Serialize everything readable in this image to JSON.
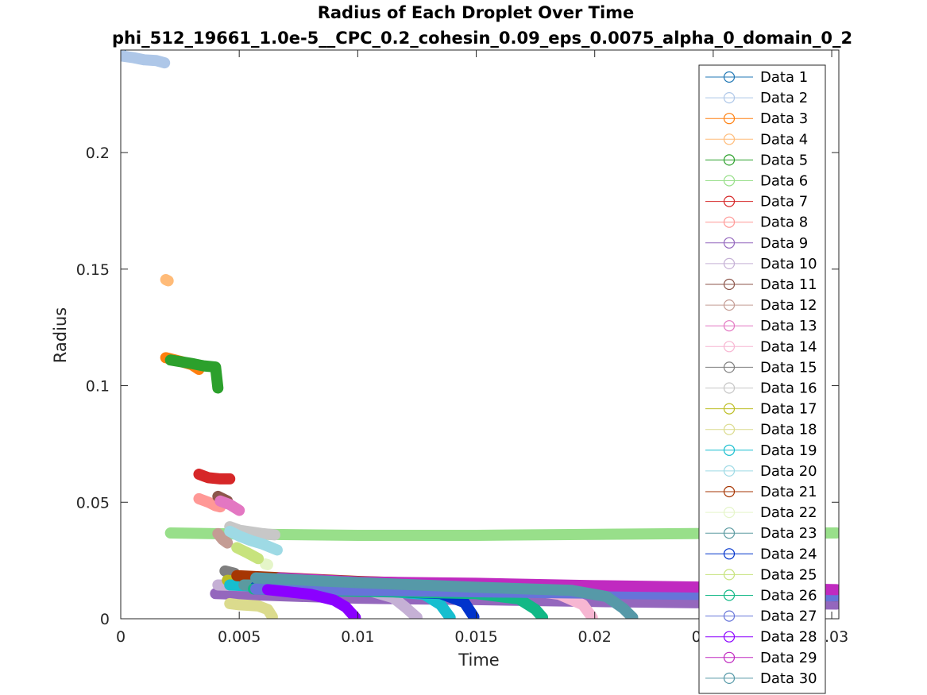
{
  "chart_data": {
    "type": "scatter",
    "title": "Radius of Each Droplet Over Time",
    "subtitle": "phi_512_19661_1.0e-5__CPC_0.2_cohesin_0.09_eps_0.0075_alpha_0_domain_0_2",
    "xlabel": "Time",
    "ylabel": "Radius",
    "xlim": [
      0,
      0.0303
    ],
    "ylim": [
      0,
      0.244
    ],
    "xticks": [
      0,
      0.005,
      0.01,
      0.015,
      0.02,
      0.025,
      0.03
    ],
    "xtick_labels": [
      "0",
      "0.005",
      "0.01",
      "0.015",
      "0.02",
      "0.025",
      "0.03"
    ],
    "yticks": [
      0,
      0.05,
      0.1,
      0.15,
      0.2
    ],
    "ytick_labels": [
      "0",
      "0.05",
      "0.1",
      "0.15",
      "0.2"
    ],
    "grid": false,
    "legend_position": "top-right",
    "series": [
      {
        "name": "Data 1",
        "color": "#1f77b4",
        "points": [
          [
            0.0,
            0.243
          ]
        ]
      },
      {
        "name": "Data 2",
        "color": "#aec7e8",
        "points": [
          [
            0.0,
            0.2415
          ],
          [
            0.0005,
            0.2408
          ],
          [
            0.001,
            0.2398
          ],
          [
            0.0015,
            0.2395
          ],
          [
            0.00185,
            0.2385
          ]
        ]
      },
      {
        "name": "Data 3",
        "color": "#ff7f0e",
        "points": [
          [
            0.0019,
            0.112
          ],
          [
            0.0025,
            0.1105
          ],
          [
            0.003,
            0.109
          ],
          [
            0.0033,
            0.107
          ]
        ]
      },
      {
        "name": "Data 4",
        "color": "#ffbb78",
        "points": [
          [
            0.0019,
            0.1455
          ],
          [
            0.002,
            0.145
          ]
        ]
      },
      {
        "name": "Data 5",
        "color": "#2ca02c",
        "points": [
          [
            0.0021,
            0.111
          ],
          [
            0.003,
            0.1095
          ],
          [
            0.0035,
            0.1085
          ],
          [
            0.004,
            0.108
          ],
          [
            0.0041,
            0.099
          ]
        ]
      },
      {
        "name": "Data 6",
        "color": "#98df8a",
        "points": [
          [
            0.0021,
            0.0368
          ],
          [
            0.006,
            0.0362
          ],
          [
            0.01,
            0.0358
          ],
          [
            0.015,
            0.0358
          ],
          [
            0.02,
            0.0362
          ],
          [
            0.025,
            0.0366
          ],
          [
            0.0302,
            0.0368
          ]
        ]
      },
      {
        "name": "Data 7",
        "color": "#d62728",
        "points": [
          [
            0.0033,
            0.062
          ],
          [
            0.0037,
            0.0605
          ],
          [
            0.0042,
            0.06
          ],
          [
            0.0046,
            0.06
          ]
        ]
      },
      {
        "name": "Data 8",
        "color": "#ff9896",
        "points": [
          [
            0.0033,
            0.0515
          ],
          [
            0.0037,
            0.05
          ],
          [
            0.004,
            0.0485
          ],
          [
            0.0042,
            0.048
          ]
        ]
      },
      {
        "name": "Data 9",
        "color": "#9467bd",
        "points": [
          [
            0.004,
            0.0108
          ],
          [
            0.01,
            0.0088
          ],
          [
            0.015,
            0.0082
          ],
          [
            0.02,
            0.0074
          ],
          [
            0.025,
            0.0068
          ],
          [
            0.0302,
            0.0063
          ]
        ]
      },
      {
        "name": "Data 10",
        "color": "#c5b0d5",
        "points": [
          [
            0.0041,
            0.0145
          ],
          [
            0.008,
            0.0135
          ],
          [
            0.0105,
            0.012
          ],
          [
            0.0115,
            0.009
          ],
          [
            0.012,
            0.005
          ],
          [
            0.0125,
            0.0005
          ]
        ]
      },
      {
        "name": "Data 11",
        "color": "#8c564b",
        "points": [
          [
            0.0041,
            0.0525
          ],
          [
            0.0045,
            0.0505
          ]
        ]
      },
      {
        "name": "Data 12",
        "color": "#c49c94",
        "points": [
          [
            0.0041,
            0.0365
          ],
          [
            0.0043,
            0.034
          ],
          [
            0.0045,
            0.0325
          ]
        ]
      },
      {
        "name": "Data 13",
        "color": "#e377c2",
        "points": [
          [
            0.0042,
            0.0505
          ],
          [
            0.0046,
            0.049
          ],
          [
            0.005,
            0.0465
          ]
        ]
      },
      {
        "name": "Data 14",
        "color": "#f7b6d2",
        "points": [
          [
            0.0055,
            0.0145
          ],
          [
            0.012,
            0.0135
          ],
          [
            0.017,
            0.0125
          ],
          [
            0.0185,
            0.0105
          ],
          [
            0.0195,
            0.006
          ],
          [
            0.0199,
            0.0005
          ]
        ]
      },
      {
        "name": "Data 15",
        "color": "#7f7f7f",
        "points": [
          [
            0.0044,
            0.0205
          ],
          [
            0.0048,
            0.0195
          ]
        ]
      },
      {
        "name": "Data 16",
        "color": "#c7c7c7",
        "points": [
          [
            0.0046,
            0.0395
          ],
          [
            0.005,
            0.038
          ],
          [
            0.006,
            0.0365
          ],
          [
            0.0065,
            0.036
          ]
        ]
      },
      {
        "name": "Data 17",
        "color": "#bcbd22",
        "points": [
          [
            0.0045,
            0.0165
          ],
          [
            0.0048,
            0.016
          ]
        ]
      },
      {
        "name": "Data 18",
        "color": "#dbdb8d",
        "points": [
          [
            0.0046,
            0.0065
          ],
          [
            0.005,
            0.006
          ],
          [
            0.0058,
            0.0055
          ],
          [
            0.0062,
            0.004
          ],
          [
            0.0064,
            0.0008
          ]
        ]
      },
      {
        "name": "Data 19",
        "color": "#17becf",
        "points": [
          [
            0.0046,
            0.0145
          ],
          [
            0.008,
            0.013
          ],
          [
            0.011,
            0.012
          ],
          [
            0.0128,
            0.0105
          ],
          [
            0.0135,
            0.006
          ],
          [
            0.0139,
            0.0005
          ]
        ]
      },
      {
        "name": "Data 20",
        "color": "#9edae5",
        "points": [
          [
            0.0046,
            0.0375
          ],
          [
            0.005,
            0.0355
          ],
          [
            0.0055,
            0.0335
          ],
          [
            0.006,
            0.032
          ],
          [
            0.0066,
            0.0295
          ]
        ]
      },
      {
        "name": "Data 21",
        "color": "#a63603",
        "points": [
          [
            0.0049,
            0.0185
          ],
          [
            0.01,
            0.016
          ],
          [
            0.015,
            0.0145
          ],
          [
            0.02,
            0.0128
          ],
          [
            0.025,
            0.0115
          ],
          [
            0.0302,
            0.0098
          ]
        ]
      },
      {
        "name": "Data 22",
        "color": "#e5f5c9",
        "points": [
          [
            0.0061,
            0.0235
          ],
          [
            0.0062,
            0.0232
          ]
        ]
      },
      {
        "name": "Data 23",
        "color": "#5b9aa0",
        "points": [
          [
            0.0052,
            0.0145
          ],
          [
            0.01,
            0.0138
          ],
          [
            0.015,
            0.0128
          ],
          [
            0.02,
            0.0118
          ],
          [
            0.025,
            0.011
          ],
          [
            0.0302,
            0.0103
          ]
        ]
      },
      {
        "name": "Data 24",
        "color": "#0033cc",
        "points": [
          [
            0.0057,
            0.0138
          ],
          [
            0.01,
            0.0122
          ],
          [
            0.0135,
            0.0108
          ],
          [
            0.0145,
            0.007
          ],
          [
            0.0149,
            0.0008
          ]
        ]
      },
      {
        "name": "Data 25",
        "color": "#c7e37d",
        "points": [
          [
            0.0049,
            0.0305
          ],
          [
            0.0053,
            0.0285
          ],
          [
            0.0058,
            0.0258
          ]
        ]
      },
      {
        "name": "Data 26",
        "color": "#12b886",
        "points": [
          [
            0.0056,
            0.0128
          ],
          [
            0.01,
            0.0118
          ],
          [
            0.015,
            0.0108
          ],
          [
            0.0168,
            0.0085
          ],
          [
            0.0175,
            0.004
          ],
          [
            0.0178,
            0.0005
          ]
        ]
      },
      {
        "name": "Data 27",
        "color": "#6674d9",
        "points": [
          [
            0.0057,
            0.0128
          ],
          [
            0.012,
            0.012
          ],
          [
            0.018,
            0.0112
          ],
          [
            0.024,
            0.0105
          ],
          [
            0.0302,
            0.0098
          ]
        ]
      },
      {
        "name": "Data 28",
        "color": "#8b00ff",
        "points": [
          [
            0.0062,
            0.0125
          ],
          [
            0.008,
            0.0105
          ],
          [
            0.009,
            0.008
          ],
          [
            0.0095,
            0.005
          ],
          [
            0.0099,
            0.0005
          ]
        ]
      },
      {
        "name": "Data 29",
        "color": "#c02ac0",
        "points": [
          [
            0.0067,
            0.0175
          ],
          [
            0.01,
            0.0158
          ],
          [
            0.015,
            0.0152
          ],
          [
            0.02,
            0.0142
          ],
          [
            0.025,
            0.0135
          ],
          [
            0.0302,
            0.0125
          ]
        ]
      },
      {
        "name": "Data 30",
        "color": "#5699a8",
        "points": [
          [
            0.0057,
            0.0175
          ],
          [
            0.01,
            0.0155
          ],
          [
            0.015,
            0.0135
          ],
          [
            0.019,
            0.0122
          ],
          [
            0.0205,
            0.0095
          ],
          [
            0.0212,
            0.0045
          ],
          [
            0.0216,
            0.0005
          ]
        ]
      }
    ]
  }
}
